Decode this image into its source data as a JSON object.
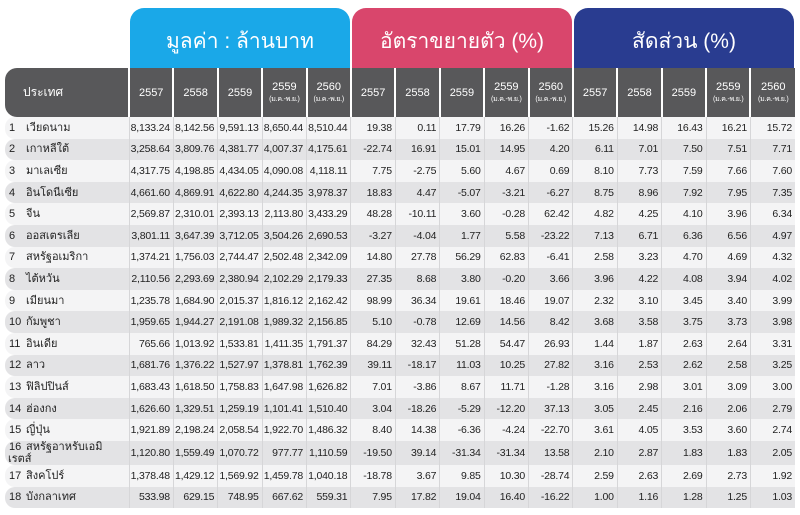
{
  "groups": {
    "value": "มูลค่า : ล้านบาท",
    "growth": "อัตราขยายตัว (%)",
    "share": "สัดส่วน (%)"
  },
  "colors": {
    "value": "#1aa8e8",
    "growth": "#d9466c",
    "share": "#293c90"
  },
  "header": {
    "country": "ประเทศ",
    "years": [
      "2557",
      "2558",
      "2559",
      "2559",
      "2560"
    ],
    "subs": [
      "",
      "",
      "",
      "(ม.ค.-พ.ย.)",
      "(ม.ค.-พ.ย.)"
    ]
  },
  "rows": [
    {
      "no": "1",
      "country": "เวียดนาม",
      "v": [
        "8,133.24",
        "8,142.56",
        "9,591.13",
        "8,650.44",
        "8,510.44"
      ],
      "g": [
        "19.38",
        "0.11",
        "17.79",
        "16.26",
        "-1.62"
      ],
      "s": [
        "15.26",
        "14.98",
        "16.43",
        "16.21",
        "15.72"
      ]
    },
    {
      "no": "2",
      "country": "เกาหลีใต้",
      "v": [
        "3,258.64",
        "3,809.76",
        "4,381.77",
        "4,007.37",
        "4,175.61"
      ],
      "g": [
        "-22.74",
        "16.91",
        "15.01",
        "14.95",
        "4.20"
      ],
      "s": [
        "6.11",
        "7.01",
        "7.50",
        "7.51",
        "7.71"
      ]
    },
    {
      "no": "3",
      "country": "มาเลเซีย",
      "v": [
        "4,317.75",
        "4,198.85",
        "4,434.05",
        "4,090.08",
        "4,118.11"
      ],
      "g": [
        "7.75",
        "-2.75",
        "5.60",
        "4.67",
        "0.69"
      ],
      "s": [
        "8.10",
        "7.73",
        "7.59",
        "7.66",
        "7.60"
      ]
    },
    {
      "no": "4",
      "country": "อินโดนีเซีย",
      "v": [
        "4,661.60",
        "4,869.91",
        "4,622.80",
        "4,244.35",
        "3,978.37"
      ],
      "g": [
        "18.83",
        "4.47",
        "-5.07",
        "-3.21",
        "-6.27"
      ],
      "s": [
        "8.75",
        "8.96",
        "7.92",
        "7.95",
        "7.35"
      ]
    },
    {
      "no": "5",
      "country": "จีน",
      "v": [
        "2,569.87",
        "2,310.01",
        "2,393.13",
        "2,113.80",
        "3,433.29"
      ],
      "g": [
        "48.28",
        "-10.11",
        "3.60",
        "-0.28",
        "62.42"
      ],
      "s": [
        "4.82",
        "4.25",
        "4.10",
        "3.96",
        "6.34"
      ]
    },
    {
      "no": "6",
      "country": "ออสเตรเลีย",
      "v": [
        "3,801.11",
        "3,647.39",
        "3,712.05",
        "3,504.26",
        "2,690.53"
      ],
      "g": [
        "-3.27",
        "-4.04",
        "1.77",
        "5.58",
        "-23.22"
      ],
      "s": [
        "7.13",
        "6.71",
        "6.36",
        "6.56",
        "4.97"
      ]
    },
    {
      "no": "7",
      "country": "สหรัฐอเมริกา",
      "v": [
        "1,374.21",
        "1,756.03",
        "2,744.47",
        "2,502.48",
        "2,342.09"
      ],
      "g": [
        "14.80",
        "27.78",
        "56.29",
        "62.83",
        "-6.41"
      ],
      "s": [
        "2.58",
        "3.23",
        "4.70",
        "4.69",
        "4.32"
      ]
    },
    {
      "no": "8",
      "country": "ไต้หวัน",
      "v": [
        "2,110.56",
        "2,293.69",
        "2,380.94",
        "2,102.29",
        "2,179.33"
      ],
      "g": [
        "27.35",
        "8.68",
        "3.80",
        "-0.20",
        "3.66"
      ],
      "s": [
        "3.96",
        "4.22",
        "4.08",
        "3.94",
        "4.02"
      ]
    },
    {
      "no": "9",
      "country": "เมียนมา",
      "v": [
        "1,235.78",
        "1,684.90",
        "2,015.37",
        "1,816.12",
        "2,162.42"
      ],
      "g": [
        "98.99",
        "36.34",
        "19.61",
        "18.46",
        "19.07"
      ],
      "s": [
        "2.32",
        "3.10",
        "3.45",
        "3.40",
        "3.99"
      ]
    },
    {
      "no": "10",
      "country": "กัมพูชา",
      "v": [
        "1,959.65",
        "1,944.27",
        "2,191.08",
        "1,989.32",
        "2,156.85"
      ],
      "g": [
        "5.10",
        "-0.78",
        "12.69",
        "14.56",
        "8.42"
      ],
      "s": [
        "3.68",
        "3.58",
        "3.75",
        "3.73",
        "3.98"
      ]
    },
    {
      "no": "11",
      "country": "อินเดีย",
      "v": [
        "765.66",
        "1,013.92",
        "1,533.81",
        "1,411.35",
        "1,791.37"
      ],
      "g": [
        "84.29",
        "32.43",
        "51.28",
        "54.47",
        "26.93"
      ],
      "s": [
        "1.44",
        "1.87",
        "2.63",
        "2.64",
        "3.31"
      ]
    },
    {
      "no": "12",
      "country": "ลาว",
      "v": [
        "1,681.76",
        "1,376.22",
        "1,527.97",
        "1,378.81",
        "1,762.39"
      ],
      "g": [
        "39.11",
        "-18.17",
        "11.03",
        "10.25",
        "27.82"
      ],
      "s": [
        "3.16",
        "2.53",
        "2.62",
        "2.58",
        "3.25"
      ]
    },
    {
      "no": "13",
      "country": "ฟิลิปปินส์",
      "v": [
        "1,683.43",
        "1,618.50",
        "1,758.83",
        "1,647.98",
        "1,626.82"
      ],
      "g": [
        "7.01",
        "-3.86",
        "8.67",
        "11.71",
        "-1.28"
      ],
      "s": [
        "3.16",
        "2.98",
        "3.01",
        "3.09",
        "3.00"
      ]
    },
    {
      "no": "14",
      "country": "ฮ่องกง",
      "v": [
        "1,626.60",
        "1,329.51",
        "1,259.19",
        "1,101.41",
        "1,510.40"
      ],
      "g": [
        "3.04",
        "-18.26",
        "-5.29",
        "-12.20",
        "37.13"
      ],
      "s": [
        "3.05",
        "2.45",
        "2.16",
        "2.06",
        "2.79"
      ]
    },
    {
      "no": "15",
      "country": "ญี่ปุ่น",
      "v": [
        "1,921.89",
        "2,198.24",
        "2,058.54",
        "1,922.70",
        "1,486.32"
      ],
      "g": [
        "8.40",
        "14.38",
        "-6.36",
        "-4.24",
        "-22.70"
      ],
      "s": [
        "3.61",
        "4.05",
        "3.53",
        "3.60",
        "2.74"
      ]
    },
    {
      "no": "16",
      "country": "สหรัฐอาหรับเอมิเรตส์",
      "v": [
        "1,120.80",
        "1,559.49",
        "1,070.72",
        "977.77",
        "1,110.59"
      ],
      "g": [
        "-19.50",
        "39.14",
        "-31.34",
        "-31.34",
        "13.58"
      ],
      "s": [
        "2.10",
        "2.87",
        "1.83",
        "1.83",
        "2.05"
      ]
    },
    {
      "no": "17",
      "country": "สิงคโปร์",
      "v": [
        "1,378.48",
        "1,429.12",
        "1,569.92",
        "1,459.78",
        "1,040.18"
      ],
      "g": [
        "-18.78",
        "3.67",
        "9.85",
        "10.30",
        "-28.74"
      ],
      "s": [
        "2.59",
        "2.63",
        "2.69",
        "2.73",
        "1.92"
      ]
    },
    {
      "no": "18",
      "country": "บังกลาเทศ",
      "v": [
        "533.98",
        "629.15",
        "748.95",
        "667.62",
        "559.31"
      ],
      "g": [
        "7.95",
        "17.82",
        "19.04",
        "16.40",
        "-16.22"
      ],
      "s": [
        "1.00",
        "1.16",
        "1.28",
        "1.25",
        "1.03"
      ]
    }
  ]
}
